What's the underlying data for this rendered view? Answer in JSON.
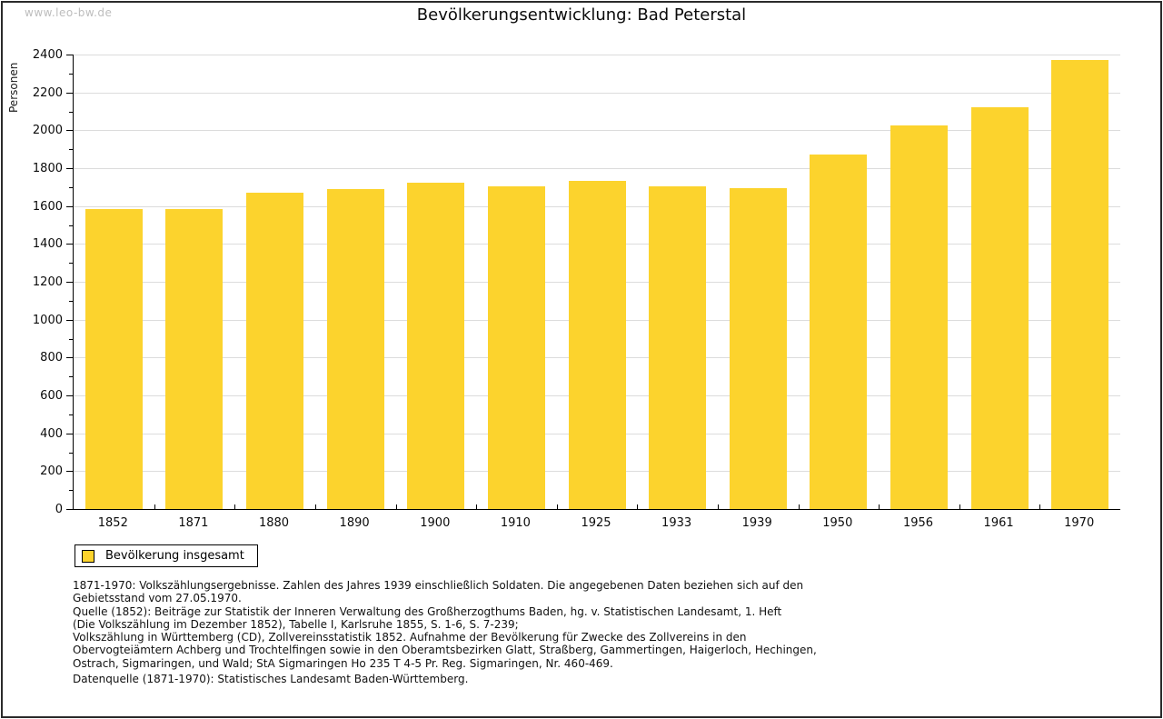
{
  "watermark": "www.leo-bw.de",
  "title": "Bevölkerungsentwicklung: Bad Peterstal",
  "chart_data": {
    "type": "bar",
    "title": "Bevölkerungsentwicklung: Bad Peterstal",
    "ylabel": "Personen",
    "xlabel": "",
    "categories": [
      "1852",
      "1871",
      "1880",
      "1890",
      "1900",
      "1910",
      "1925",
      "1933",
      "1939",
      "1950",
      "1956",
      "1961",
      "1970"
    ],
    "values": [
      1583,
      1582,
      1673,
      1688,
      1724,
      1702,
      1732,
      1706,
      1696,
      1873,
      2024,
      2122,
      2371
    ],
    "ylim": [
      0,
      2400
    ],
    "ytick_step": 200,
    "ytick_minor_step": 100,
    "grid": true,
    "legend_position": "bottom-left",
    "bar_color": "#FCD32D",
    "grid_color": "#dcdcdc",
    "series_name": "Bevölkerung insgesamt"
  },
  "legend": {
    "label": "Bevölkerung insgesamt",
    "swatch_color": "#FCD32D"
  },
  "footnotes": [
    "1871-1970: Volkszählungsergebnisse. Zahlen des Jahres 1939 einschließlich Soldaten. Die angegebenen Daten beziehen sich auf den",
    "Gebietsstand vom 27.05.1970.",
    "Quelle (1852): Beiträge zur Statistik der Inneren Verwaltung des Großherzogthums Baden, hg. v. Statistischen Landesamt, 1. Heft",
    "(Die Volkszählung im Dezember 1852), Tabelle I, Karlsruhe 1855, S. 1-6, S. 7-239;",
    "Volkszählung in Württemberg (CD), Zollvereinsstatistik 1852. Aufnahme der Bevölkerung für Zwecke des Zollvereins in den",
    "Obervogteiämtern Achberg und Trochtelfingen sowie in den Oberamtsbezirken Glatt, Straßberg, Gammertingen, Haigerloch, Hechingen,",
    "Ostrach, Sigmaringen, und Wald; StA Sigmaringen Ho 235 T 4-5 Pr. Reg. Sigmaringen, Nr. 460-469."
  ],
  "datasource": "Datenquelle (1871-1970): Statistisches Landesamt Baden-Württemberg."
}
